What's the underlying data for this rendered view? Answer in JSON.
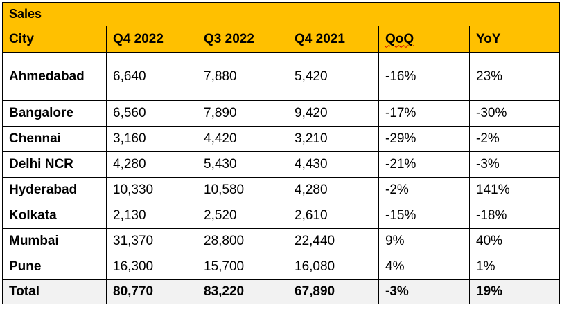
{
  "table": {
    "title": "Sales",
    "headers": [
      "City",
      "Q4 2022",
      "Q3 2022",
      "Q4 2021",
      "QoQ",
      "YoY"
    ],
    "rows": [
      {
        "city": "Ahmedabad",
        "q4_2022": "6,640",
        "q3_2022": "7,880",
        "q4_2021": "5,420",
        "qoq": "-16%",
        "yoy": "23%"
      },
      {
        "city": "Bangalore",
        "q4_2022": "6,560",
        "q3_2022": "7,890",
        "q4_2021": "9,420",
        "qoq": "-17%",
        "yoy": "-30%"
      },
      {
        "city": "Chennai",
        "q4_2022": "3,160",
        "q3_2022": "4,420",
        "q4_2021": "3,210",
        "qoq": "-29%",
        "yoy": "-2%"
      },
      {
        "city": "Delhi NCR",
        "q4_2022": "4,280",
        "q3_2022": "5,430",
        "q4_2021": "4,430",
        "qoq": "-21%",
        "yoy": "-3%"
      },
      {
        "city": "Hyderabad",
        "q4_2022": "10,330",
        "q3_2022": "10,580",
        "q4_2021": "4,280",
        "qoq": "-2%",
        "yoy": "141%"
      },
      {
        "city": "Kolkata",
        "q4_2022": "2,130",
        "q3_2022": "2,520",
        "q4_2021": "2,610",
        "qoq": "-15%",
        "yoy": "-18%"
      },
      {
        "city": "Mumbai",
        "q4_2022": "31,370",
        "q3_2022": "28,800",
        "q4_2021": "22,440",
        "qoq": "9%",
        "yoy": "40%"
      },
      {
        "city": "Pune",
        "q4_2022": "16,300",
        "q3_2022": "15,700",
        "q4_2021": "16,080",
        "qoq": "4%",
        "yoy": "1%"
      }
    ],
    "total": {
      "city": "Total",
      "q4_2022": "80,770",
      "q3_2022": "83,220",
      "q4_2021": "67,890",
      "qoq": "-3%",
      "yoy": "19%"
    }
  },
  "colors": {
    "header_fill": "#ffc000",
    "total_fill": "#f2f2f2",
    "border": "#000000"
  }
}
